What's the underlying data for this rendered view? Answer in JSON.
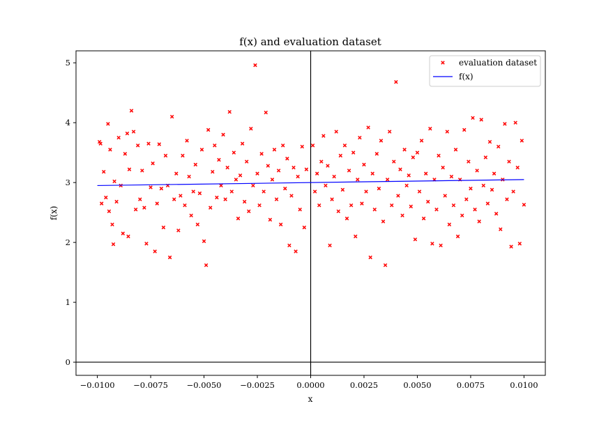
{
  "chart_data": {
    "type": "scatter",
    "title": "f(x) and evaluation dataset",
    "xlabel": "x",
    "ylabel": "f(x)",
    "xlim": [
      -0.011,
      0.011
    ],
    "ylim": [
      -0.22,
      5.2
    ],
    "xticks": [
      {
        "value": -0.01,
        "label": "−0.0100"
      },
      {
        "value": -0.0075,
        "label": "−0.0075"
      },
      {
        "value": -0.005,
        "label": "−0.0050"
      },
      {
        "value": -0.0025,
        "label": "−0.0025"
      },
      {
        "value": 0.0,
        "label": "0.0000"
      },
      {
        "value": 0.0025,
        "label": "0.0025"
      },
      {
        "value": 0.005,
        "label": "0.0050"
      },
      {
        "value": 0.0075,
        "label": "0.0075"
      },
      {
        "value": 0.01,
        "label": "0.0100"
      }
    ],
    "yticks": [
      {
        "value": 0,
        "label": "0"
      },
      {
        "value": 1,
        "label": "1"
      },
      {
        "value": 2,
        "label": "2"
      },
      {
        "value": 3,
        "label": "3"
      },
      {
        "value": 4,
        "label": "4"
      },
      {
        "value": 5,
        "label": "5"
      }
    ],
    "grid": false,
    "reference_lines": {
      "x0": true,
      "y0": true
    },
    "legend": {
      "placement": "upper right",
      "entries": [
        {
          "label": "evaluation dataset",
          "marker": "x",
          "color": "#ff0000"
        },
        {
          "label": "f(x)",
          "marker": "line",
          "color": "#0000ff"
        }
      ]
    },
    "series": [
      {
        "name": "evaluation dataset",
        "kind": "scatter",
        "marker": "x",
        "color": "#ff0000",
        "points": [
          [
            -0.0099,
            3.68
          ],
          [
            -0.00985,
            3.65
          ],
          [
            -0.0098,
            2.65
          ],
          [
            -0.0097,
            3.18
          ],
          [
            -0.0096,
            2.75
          ],
          [
            -0.0095,
            3.98
          ],
          [
            -0.00945,
            2.52
          ],
          [
            -0.0094,
            3.55
          ],
          [
            -0.0093,
            2.3
          ],
          [
            -0.00925,
            1.97
          ],
          [
            -0.0092,
            3.02
          ],
          [
            -0.0091,
            2.68
          ],
          [
            -0.009,
            3.75
          ],
          [
            -0.0089,
            2.95
          ],
          [
            -0.0088,
            2.15
          ],
          [
            -0.0087,
            3.48
          ],
          [
            -0.0086,
            3.82
          ],
          [
            -0.00855,
            2.1
          ],
          [
            -0.0085,
            3.22
          ],
          [
            -0.0084,
            4.2
          ],
          [
            -0.0083,
            3.85
          ],
          [
            -0.0082,
            2.55
          ],
          [
            -0.0081,
            3.62
          ],
          [
            -0.008,
            2.72
          ],
          [
            -0.0079,
            3.2
          ],
          [
            -0.0078,
            2.58
          ],
          [
            -0.0077,
            1.98
          ],
          [
            -0.0076,
            3.65
          ],
          [
            -0.0075,
            2.92
          ],
          [
            -0.0074,
            3.32
          ],
          [
            -0.0073,
            1.85
          ],
          [
            -0.0072,
            2.65
          ],
          [
            -0.0071,
            3.64
          ],
          [
            -0.007,
            2.9
          ],
          [
            -0.0069,
            2.25
          ],
          [
            -0.0068,
            3.45
          ],
          [
            -0.0067,
            2.95
          ],
          [
            -0.0066,
            1.75
          ],
          [
            -0.0065,
            4.1
          ],
          [
            -0.0064,
            2.72
          ],
          [
            -0.0063,
            3.15
          ],
          [
            -0.0062,
            2.2
          ],
          [
            -0.0061,
            2.78
          ],
          [
            -0.006,
            3.45
          ],
          [
            -0.0059,
            2.62
          ],
          [
            -0.0058,
            3.7
          ],
          [
            -0.0057,
            3.1
          ],
          [
            -0.0056,
            2.45
          ],
          [
            -0.0055,
            2.85
          ],
          [
            -0.0054,
            3.3
          ],
          [
            -0.0053,
            2.3
          ],
          [
            -0.0052,
            2.82
          ],
          [
            -0.0051,
            3.55
          ],
          [
            -0.005,
            2.02
          ],
          [
            -0.0049,
            1.62
          ],
          [
            -0.0048,
            3.88
          ],
          [
            -0.0047,
            2.58
          ],
          [
            -0.0046,
            3.18
          ],
          [
            -0.0045,
            3.62
          ],
          [
            -0.0044,
            2.75
          ],
          [
            -0.0043,
            3.38
          ],
          [
            -0.0042,
            2.95
          ],
          [
            -0.0041,
            3.8
          ],
          [
            -0.004,
            2.72
          ],
          [
            -0.0039,
            3.25
          ],
          [
            -0.0038,
            4.18
          ],
          [
            -0.0037,
            2.85
          ],
          [
            -0.0036,
            3.5
          ],
          [
            -0.0035,
            3.05
          ],
          [
            -0.0034,
            2.4
          ],
          [
            -0.0033,
            3.12
          ],
          [
            -0.0032,
            3.65
          ],
          [
            -0.0031,
            2.68
          ],
          [
            -0.003,
            3.35
          ],
          [
            -0.0029,
            2.52
          ],
          [
            -0.0028,
            3.9
          ],
          [
            -0.0027,
            2.95
          ],
          [
            -0.0026,
            4.96
          ],
          [
            -0.0025,
            3.15
          ],
          [
            -0.0024,
            2.62
          ],
          [
            -0.0023,
            3.48
          ],
          [
            -0.0022,
            2.85
          ],
          [
            -0.0021,
            4.17
          ],
          [
            -0.002,
            3.28
          ],
          [
            -0.0019,
            2.38
          ],
          [
            -0.0018,
            3.05
          ],
          [
            -0.0017,
            3.55
          ],
          [
            -0.0016,
            2.72
          ],
          [
            -0.0015,
            3.2
          ],
          [
            -0.0014,
            2.3
          ],
          [
            -0.0013,
            3.62
          ],
          [
            -0.0012,
            2.9
          ],
          [
            -0.0011,
            3.4
          ],
          [
            -0.001,
            1.95
          ],
          [
            -0.0009,
            2.78
          ],
          [
            -0.0008,
            3.25
          ],
          [
            -0.0007,
            1.85
          ],
          [
            -0.0006,
            3.1
          ],
          [
            -0.0005,
            2.55
          ],
          [
            -0.0004,
            3.6
          ],
          [
            -0.0003,
            2.25
          ],
          [
            -0.0002,
            3.22
          ],
          [
            0.0001,
            3.62
          ],
          [
            0.0002,
            2.85
          ],
          [
            0.0003,
            3.15
          ],
          [
            0.0004,
            2.62
          ],
          [
            0.0005,
            3.35
          ],
          [
            0.0006,
            3.78
          ],
          [
            0.0007,
            2.95
          ],
          [
            0.0008,
            3.28
          ],
          [
            0.0009,
            1.95
          ],
          [
            0.001,
            2.72
          ],
          [
            0.0011,
            3.1
          ],
          [
            0.0012,
            3.85
          ],
          [
            0.0013,
            2.52
          ],
          [
            0.0014,
            3.45
          ],
          [
            0.0015,
            2.88
          ],
          [
            0.0016,
            3.62
          ],
          [
            0.0017,
            2.4
          ],
          [
            0.0018,
            3.2
          ],
          [
            0.0019,
            2.62
          ],
          [
            0.002,
            3.5
          ],
          [
            0.0021,
            2.1
          ],
          [
            0.0022,
            3.05
          ],
          [
            0.0023,
            3.75
          ],
          [
            0.0024,
            2.65
          ],
          [
            0.0025,
            3.3
          ],
          [
            0.0026,
            2.85
          ],
          [
            0.0027,
            3.92
          ],
          [
            0.0028,
            1.75
          ],
          [
            0.0029,
            3.15
          ],
          [
            0.003,
            2.55
          ],
          [
            0.0031,
            3.48
          ],
          [
            0.0032,
            2.9
          ],
          [
            0.0033,
            3.7
          ],
          [
            0.0034,
            2.35
          ],
          [
            0.0035,
            1.62
          ],
          [
            0.0036,
            3.05
          ],
          [
            0.0037,
            3.85
          ],
          [
            0.0038,
            2.62
          ],
          [
            0.0039,
            3.35
          ],
          [
            0.004,
            4.68
          ],
          [
            0.0041,
            2.78
          ],
          [
            0.0042,
            3.22
          ],
          [
            0.0043,
            2.45
          ],
          [
            0.0044,
            3.55
          ],
          [
            0.0045,
            2.95
          ],
          [
            0.0046,
            3.12
          ],
          [
            0.0047,
            2.6
          ],
          [
            0.0048,
            3.42
          ],
          [
            0.0049,
            2.05
          ],
          [
            0.005,
            3.5
          ],
          [
            0.0051,
            2.85
          ],
          [
            0.0052,
            3.7
          ],
          [
            0.0053,
            2.4
          ],
          [
            0.0054,
            3.15
          ],
          [
            0.0055,
            2.68
          ],
          [
            0.0056,
            3.9
          ],
          [
            0.0057,
            1.98
          ],
          [
            0.0058,
            3.05
          ],
          [
            0.0059,
            2.55
          ],
          [
            0.006,
            3.45
          ],
          [
            0.0061,
            1.95
          ],
          [
            0.0062,
            3.25
          ],
          [
            0.0063,
            2.78
          ],
          [
            0.0064,
            3.85
          ],
          [
            0.0065,
            2.3
          ],
          [
            0.0066,
            3.1
          ],
          [
            0.0067,
            2.62
          ],
          [
            0.0068,
            3.55
          ],
          [
            0.0069,
            2.1
          ],
          [
            0.007,
            3.05
          ],
          [
            0.0071,
            2.45
          ],
          [
            0.0072,
            3.88
          ],
          [
            0.0073,
            2.72
          ],
          [
            0.0074,
            3.35
          ],
          [
            0.0075,
            2.9
          ],
          [
            0.0076,
            4.08
          ],
          [
            0.0077,
            2.55
          ],
          [
            0.0078,
            3.2
          ],
          [
            0.0079,
            2.35
          ],
          [
            0.008,
            4.05
          ],
          [
            0.0081,
            2.95
          ],
          [
            0.0082,
            3.42
          ],
          [
            0.0083,
            2.65
          ],
          [
            0.0084,
            3.68
          ],
          [
            0.0085,
            2.88
          ],
          [
            0.0086,
            3.15
          ],
          [
            0.0087,
            2.48
          ],
          [
            0.0088,
            3.6
          ],
          [
            0.0089,
            2.22
          ],
          [
            0.009,
            3.05
          ],
          [
            0.0091,
            3.98
          ],
          [
            0.0092,
            2.72
          ],
          [
            0.0093,
            3.35
          ],
          [
            0.0094,
            1.93
          ],
          [
            0.0095,
            2.85
          ],
          [
            0.0096,
            4.0
          ],
          [
            0.0097,
            3.25
          ],
          [
            0.0098,
            1.98
          ],
          [
            0.0099,
            3.7
          ],
          [
            0.01,
            2.63
          ]
        ]
      },
      {
        "name": "f(x)",
        "kind": "line",
        "color": "#0000ff",
        "x": [
          -0.01,
          0.01
        ],
        "y": [
          2.95,
          3.05
        ]
      }
    ]
  }
}
